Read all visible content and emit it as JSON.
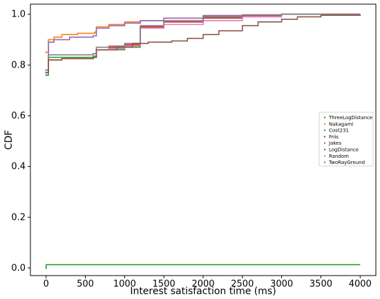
{
  "chart_data": {
    "type": "line",
    "title": "",
    "xlabel": "Interest satisfaction time (ms)",
    "ylabel": "CDF",
    "xlim": [
      -200,
      4200
    ],
    "ylim": [
      -0.03,
      1.04
    ],
    "xticks": [
      0,
      500,
      1000,
      1500,
      2000,
      2500,
      3000,
      3500,
      4000
    ],
    "yticks": [
      0.0,
      0.2,
      0.4,
      0.6,
      0.8,
      1.0
    ],
    "ytick_labels": [
      "0.0",
      "0.2",
      "0.4",
      "0.6",
      "0.8",
      "1.0"
    ],
    "grid": false,
    "legend_position": "center-right",
    "series": [
      {
        "name": "ThreeLogDistance",
        "color": "#2ca02c",
        "x": [
          0,
          1,
          4000
        ],
        "y": [
          0.0,
          0.013,
          0.013
        ]
      },
      {
        "name": "Nakagami",
        "color": "#ff7f0e",
        "x": [
          0,
          30,
          100,
          200,
          400,
          620,
          640,
          800,
          1000,
          1200,
          1500,
          2000,
          2500,
          3000,
          4000
        ],
        "y": [
          0.85,
          0.9,
          0.91,
          0.92,
          0.925,
          0.93,
          0.95,
          0.96,
          0.97,
          0.975,
          0.985,
          0.995,
          0.998,
          1.0,
          1.0
        ]
      },
      {
        "name": "Cost231",
        "color": "#2ca02c",
        "x": [
          0,
          30,
          200,
          600,
          640,
          800,
          1000,
          1200,
          1500,
          2000,
          2500,
          3000,
          4000
        ],
        "y": [
          0.76,
          0.83,
          0.83,
          0.835,
          0.86,
          0.86,
          0.87,
          0.95,
          0.97,
          0.99,
          0.997,
          1.0,
          1.0
        ]
      },
      {
        "name": "Friis",
        "color": "#d62728",
        "x": [
          0,
          30,
          200,
          600,
          640,
          800,
          1000,
          1200,
          1500,
          2000,
          2500,
          3000,
          4000
        ],
        "y": [
          0.77,
          0.82,
          0.825,
          0.83,
          0.86,
          0.87,
          0.88,
          0.95,
          0.97,
          0.985,
          0.995,
          1.0,
          1.0
        ]
      },
      {
        "name": "Jakes",
        "color": "#9467bd",
        "x": [
          0,
          30,
          100,
          300,
          600,
          640,
          800,
          1000,
          1200,
          1500,
          2000,
          2500,
          3000,
          4000
        ],
        "y": [
          0.78,
          0.89,
          0.9,
          0.91,
          0.915,
          0.945,
          0.955,
          0.965,
          0.975,
          0.985,
          0.995,
          0.998,
          1.0,
          1.0
        ]
      },
      {
        "name": "LogDistance",
        "color": "#8c564b",
        "x": [
          0,
          30,
          200,
          600,
          640,
          900,
          1100,
          1300,
          1600,
          1800,
          2000,
          2200,
          2500,
          2700,
          3000,
          3200,
          3500,
          4000
        ],
        "y": [
          0.77,
          0.82,
          0.825,
          0.83,
          0.86,
          0.87,
          0.885,
          0.89,
          0.895,
          0.905,
          0.92,
          0.935,
          0.955,
          0.97,
          0.98,
          0.99,
          0.996,
          1.0
        ]
      },
      {
        "name": "Random",
        "color": "#e377c2",
        "x": [
          0,
          30,
          200,
          600,
          640,
          800,
          1000,
          1200,
          1500,
          2000,
          2500,
          3000,
          4000
        ],
        "y": [
          0.77,
          0.82,
          0.825,
          0.83,
          0.86,
          0.865,
          0.875,
          0.945,
          0.96,
          0.975,
          0.99,
          1.0,
          1.0
        ]
      },
      {
        "name": "TwoRayGround",
        "color": "#7f7f7f",
        "x": [
          0,
          30,
          200,
          600,
          640,
          800,
          1000,
          1200,
          1500,
          2000,
          2500,
          3000,
          4000
        ],
        "y": [
          0.77,
          0.84,
          0.84,
          0.845,
          0.87,
          0.875,
          0.885,
          0.955,
          0.975,
          0.99,
          0.997,
          1.0,
          1.0
        ]
      }
    ]
  }
}
